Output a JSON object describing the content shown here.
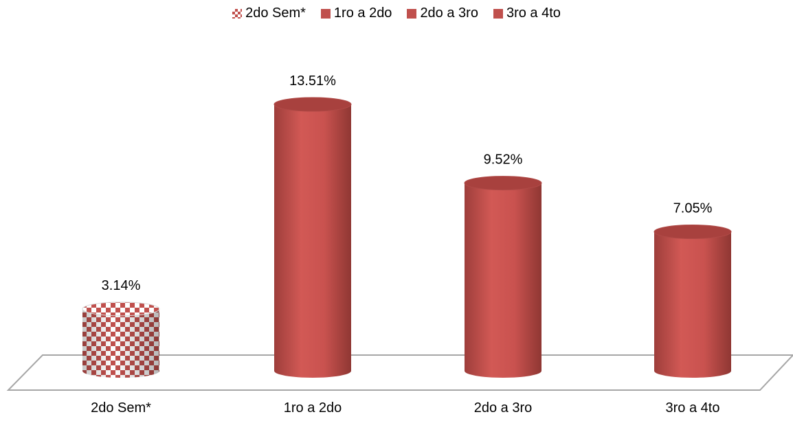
{
  "chart_data": {
    "type": "bar",
    "style": "3d-cylinder",
    "categories": [
      "2do Sem*",
      "1ro a 2do",
      "2do a 3ro",
      "3ro a 4to"
    ],
    "values": [
      3.14,
      13.51,
      9.52,
      7.05
    ],
    "data_labels": [
      "3.14%",
      "13.51%",
      "9.52%",
      "7.05%"
    ],
    "series": [
      {
        "name": "2do Sem*",
        "pattern": "checker",
        "color": "#c0504d"
      },
      {
        "name": "1ro a 2do",
        "pattern": "solid",
        "color": "#c0504d"
      },
      {
        "name": "2do a 3ro",
        "pattern": "solid",
        "color": "#c0504d"
      },
      {
        "name": "3ro a 4to",
        "pattern": "solid",
        "color": "#c0504d"
      }
    ],
    "ylim": [
      0,
      14
    ],
    "legend_position": "top",
    "grid": false,
    "title": "",
    "xlabel": "",
    "ylabel": ""
  }
}
